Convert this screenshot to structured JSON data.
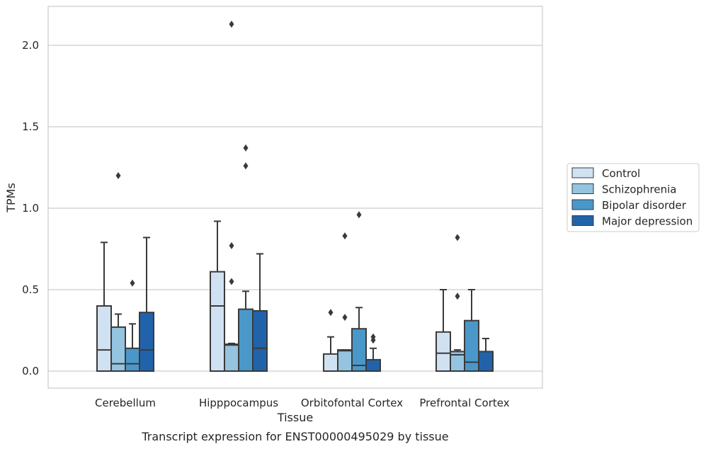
{
  "chart_data": {
    "type": "boxplot",
    "xlabel": "Tissue",
    "ylabel": "TPMs",
    "caption": "Transcript expression for ENST00000495029 by tissue",
    "ylim": [
      -0.1,
      2.25
    ],
    "yticks": [
      "0.0",
      "0.5",
      "1.0",
      "1.5",
      "2.0"
    ],
    "ytick_values": [
      0.0,
      0.5,
      1.0,
      1.5,
      2.0
    ],
    "grid": "horizontal",
    "legend_position": "right",
    "categories": [
      "Cerebellum",
      "Hipppocampus",
      "Orbitofontal Cortex",
      "Prefrontal Cortex"
    ],
    "series": [
      {
        "name": "Control",
        "color": "#d0e1f2",
        "boxes": [
          {
            "q1": 0.0,
            "median": 0.13,
            "q3": 0.4,
            "whisker_low": 0.0,
            "whisker_high": 0.79,
            "outliers": []
          },
          {
            "q1": 0.0,
            "median": 0.4,
            "q3": 0.61,
            "whisker_low": 0.0,
            "whisker_high": 0.92,
            "outliers": []
          },
          {
            "q1": 0.0,
            "median": 0.0,
            "q3": 0.105,
            "whisker_low": 0.0,
            "whisker_high": 0.21,
            "outliers": [
              0.36
            ]
          },
          {
            "q1": 0.0,
            "median": 0.11,
            "q3": 0.24,
            "whisker_low": 0.0,
            "whisker_high": 0.5,
            "outliers": []
          }
        ]
      },
      {
        "name": "Schizophrenia",
        "color": "#94c4df",
        "boxes": [
          {
            "q1": 0.0,
            "median": 0.045,
            "q3": 0.27,
            "whisker_low": 0.0,
            "whisker_high": 0.35,
            "outliers": [
              1.2
            ]
          },
          {
            "q1": 0.0,
            "median": 0.16,
            "q3": 0.165,
            "whisker_low": 0.0,
            "whisker_high": 0.17,
            "outliers": [
              0.55,
              0.77,
              2.13
            ]
          },
          {
            "q1": 0.0,
            "median": 0.125,
            "q3": 0.13,
            "whisker_low": 0.0,
            "whisker_high": 0.13,
            "outliers": [
              0.33,
              0.83
            ]
          },
          {
            "q1": 0.0,
            "median": 0.1,
            "q3": 0.12,
            "whisker_low": 0.0,
            "whisker_high": 0.13,
            "outliers": [
              0.46,
              0.82
            ]
          }
        ]
      },
      {
        "name": "Bipolar disorder",
        "color": "#4a98c9",
        "boxes": [
          {
            "q1": 0.0,
            "median": 0.045,
            "q3": 0.14,
            "whisker_low": 0.0,
            "whisker_high": 0.29,
            "outliers": [
              0.54
            ]
          },
          {
            "q1": 0.0,
            "median": 0.0,
            "q3": 0.38,
            "whisker_low": 0.0,
            "whisker_high": 0.49,
            "outliers": [
              1.26,
              1.37
            ]
          },
          {
            "q1": 0.0,
            "median": 0.035,
            "q3": 0.26,
            "whisker_low": 0.0,
            "whisker_high": 0.39,
            "outliers": [
              0.96
            ]
          },
          {
            "q1": 0.0,
            "median": 0.055,
            "q3": 0.31,
            "whisker_low": 0.0,
            "whisker_high": 0.5,
            "outliers": []
          }
        ]
      },
      {
        "name": "Major depression",
        "color": "#2163aa",
        "boxes": [
          {
            "q1": 0.0,
            "median": 0.13,
            "q3": 0.36,
            "whisker_low": 0.0,
            "whisker_high": 0.82,
            "outliers": []
          },
          {
            "q1": 0.0,
            "median": 0.14,
            "q3": 0.37,
            "whisker_low": 0.0,
            "whisker_high": 0.72,
            "outliers": []
          },
          {
            "q1": 0.0,
            "median": 0.0,
            "q3": 0.07,
            "whisker_low": 0.0,
            "whisker_high": 0.14,
            "outliers": [
              0.19,
              0.21
            ]
          },
          {
            "q1": 0.0,
            "median": 0.0,
            "q3": 0.12,
            "whisker_low": 0.0,
            "whisker_high": 0.2,
            "outliers": []
          }
        ]
      }
    ]
  }
}
